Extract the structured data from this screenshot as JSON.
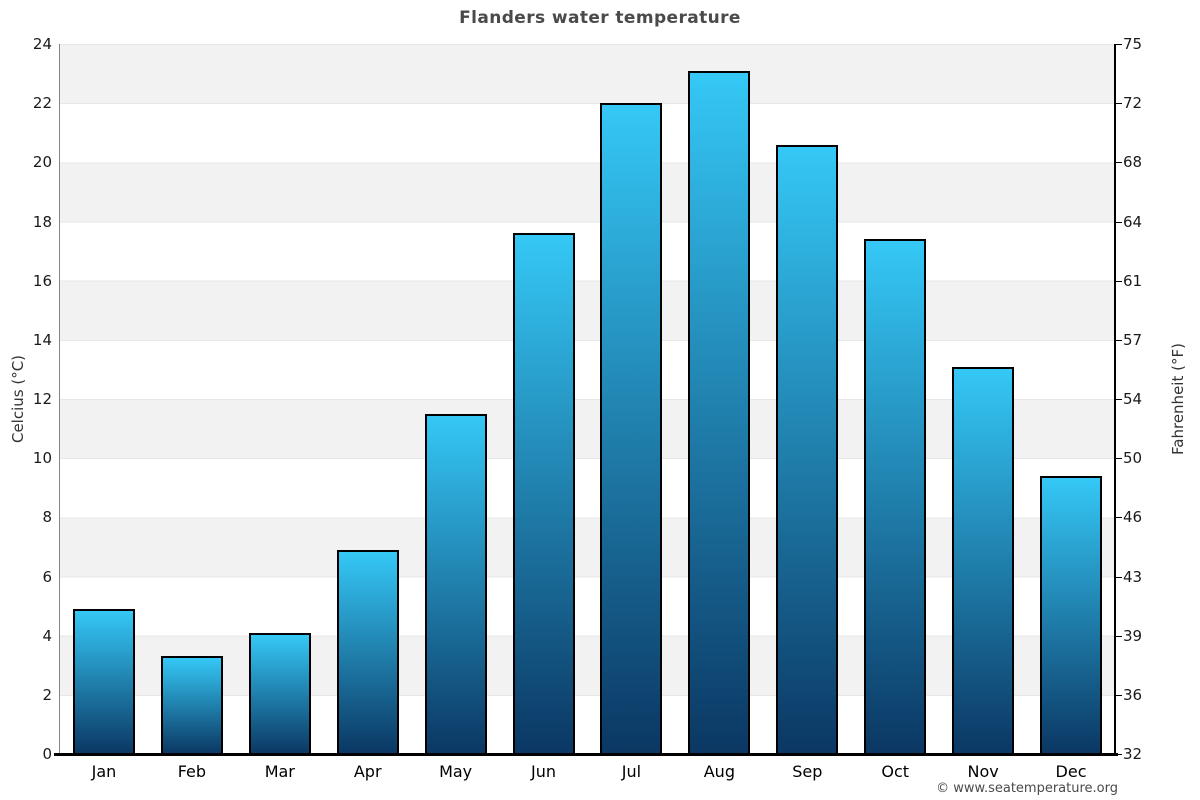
{
  "chart_data": {
    "type": "bar",
    "title": "Flanders water temperature",
    "categories": [
      "Jan",
      "Feb",
      "Mar",
      "Apr",
      "May",
      "Jun",
      "Jul",
      "Aug",
      "Sep",
      "Oct",
      "Nov",
      "Dec"
    ],
    "values": [
      4.9,
      3.3,
      4.1,
      6.9,
      11.5,
      17.6,
      22.0,
      23.1,
      20.6,
      17.4,
      13.1,
      9.4
    ],
    "ylabel_left": "Celcius (°C)",
    "ylabel_right": "Fahrenheit (°F)",
    "ylim": [
      0,
      24
    ],
    "yticks_celsius": [
      24,
      22,
      20,
      18,
      16,
      14,
      12,
      10,
      8,
      6,
      4,
      2,
      0
    ],
    "yticks_fahrenheit": [
      75,
      72,
      68,
      64,
      61,
      57,
      54,
      50,
      46,
      43,
      39,
      36,
      32
    ],
    "grid": "alternating horizontal gray/white bands every 2 °C, gridlines on band edges",
    "legend": "none",
    "colors": {
      "bar_gradient_top": "#35c8f6",
      "bar_gradient_bottom": "#0b3763",
      "bar_border": "#000000",
      "band_gray": "#f2f2f2",
      "band_white": "#ffffff",
      "title_color": "#4a4a4a"
    }
  },
  "footer": {
    "copyright": "© www.seatemperature.org"
  }
}
